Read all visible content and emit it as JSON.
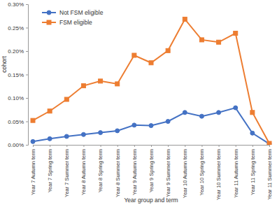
{
  "chart_data": {
    "type": "line",
    "x_label": "Year group and term",
    "y_label": "cohort",
    "categories": [
      "Year 7 Autumn term",
      "Year 7 Spring term",
      "Year 7 Summer term",
      "Year 8 Autumn term",
      "Year 8 Spring term",
      "Year 8 Summer term",
      "Year 9 Autumn term",
      "Year 9 Spring term",
      "Year 9 Summer term",
      "Year 10 Autumn term",
      "Year 10 Spring term",
      "Year 10 Summer term",
      "Year 11 Autumn term",
      "Year 11 Spring term",
      "Year 11 Summer term"
    ],
    "series": [
      {
        "name": "Not FSM eligible",
        "color": "#4472c4",
        "marker": "circle",
        "values": [
          0.007,
          0.013,
          0.018,
          0.022,
          0.026,
          0.03,
          0.042,
          0.041,
          0.05,
          0.069,
          0.061,
          0.069,
          0.079,
          0.025,
          0.002
        ]
      },
      {
        "name": "FSM eligible",
        "color": "#ed7d31",
        "marker": "square",
        "values": [
          0.052,
          0.072,
          0.097,
          0.126,
          0.136,
          0.13,
          0.191,
          0.175,
          0.201,
          0.268,
          0.224,
          0.219,
          0.238,
          0.069,
          0.003
        ]
      }
    ],
    "ylim": [
      0,
      0.3
    ],
    "yticks": [
      {
        "value": 0,
        "label": "0.00%"
      },
      {
        "value": 0.05,
        "label": "0.05%"
      },
      {
        "value": 0.1,
        "label": "0.10%"
      },
      {
        "value": 0.15,
        "label": "0.15%"
      },
      {
        "value": 0.2,
        "label": "0.20%"
      },
      {
        "value": 0.25,
        "label": "0.25%"
      },
      {
        "value": 0.3,
        "label": "0.30%"
      }
    ],
    "grid": false,
    "legend": "top-left"
  }
}
